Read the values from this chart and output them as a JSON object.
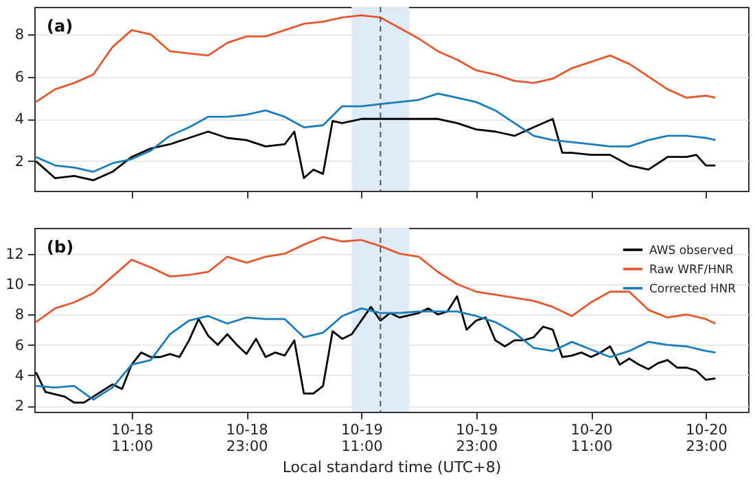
{
  "chart_data": [
    {
      "type": "line",
      "annotations": [
        "(a)"
      ],
      "x": [
        "--10-18T01:00",
        "--10-18T03:00",
        "--10-18T05:00",
        "--10-18T07:00",
        "--10-18T09:00",
        "--10-18T11:00",
        "--10-18T13:00",
        "--10-18T15:00",
        "--10-18T17:00",
        "--10-18T19:00",
        "--10-18T21:00",
        "--10-18T23:00",
        "--10-19T01:00",
        "--10-19T03:00",
        "--10-19T05:00",
        "--10-19T07:00",
        "--10-19T09:00",
        "--10-19T11:00",
        "--10-19T13:00",
        "--10-19T15:00",
        "--10-19T17:00",
        "--10-19T19:00",
        "--10-19T21:00",
        "--10-19T23:00",
        "--10-20T01:00",
        "--10-20T03:00",
        "--10-20T05:00",
        "--10-20T07:00",
        "--10-20T09:00",
        "--10-20T11:00",
        "--10-20T13:00",
        "--10-20T15:00",
        "--10-20T17:00",
        "--10-20T19:00",
        "--10-20T21:00",
        "--10-20T23:00",
        "--10-21T00:00"
      ],
      "series": [
        {
          "color": "#000000",
          "x": [
            "--10-18T01:00",
            "--10-18T03:00",
            "--10-18T05:00",
            "--10-18T07:00",
            "--10-18T09:00",
            "--10-18T11:00",
            "--10-18T13:00",
            "--10-18T15:00",
            "--10-18T17:00",
            "--10-18T19:00",
            "--10-18T21:00",
            "--10-18T23:00",
            "--10-19T01:00",
            "--10-19T03:00",
            "--10-19T04:00",
            "--10-19T05:00",
            "--10-19T06:00",
            "--10-19T07:00",
            "--10-19T08:00",
            "--10-19T09:00",
            "--10-19T11:00",
            "--10-19T13:00",
            "--10-19T15:00",
            "--10-19T17:00",
            "--10-19T19:00",
            "--10-19T21:00",
            "--10-19T23:00",
            "--10-20T01:00",
            "--10-20T03:00",
            "--10-20T05:00",
            "--10-20T07:00",
            "--10-20T08:00",
            "--10-20T09:00",
            "--10-20T11:00",
            "--10-20T13:00",
            "--10-20T15:00",
            "--10-20T17:00",
            "--10-20T19:00",
            "--10-20T21:00",
            "--10-20T22:00",
            "--10-20T23:00",
            "--10-21T00:00"
          ],
          "values": [
            2.0,
            1.2,
            1.3,
            1.1,
            1.5,
            2.2,
            2.6,
            2.8,
            3.1,
            3.4,
            3.1,
            3.0,
            2.7,
            2.8,
            3.4,
            1.2,
            1.6,
            1.4,
            3.9,
            3.8,
            4.0,
            4.0,
            4.0,
            4.0,
            4.0,
            3.8,
            3.5,
            3.4,
            3.2,
            3.6,
            4.0,
            2.4,
            2.4,
            2.3,
            2.3,
            1.8,
            1.6,
            2.2,
            2.2,
            2.3,
            1.8,
            1.8
          ]
        },
        {
          "color": "#e4572e",
          "values": [
            4.8,
            5.4,
            5.7,
            6.1,
            7.4,
            8.2,
            8.0,
            7.2,
            7.1,
            7.0,
            7.6,
            7.9,
            7.9,
            8.2,
            8.5,
            8.6,
            8.8,
            8.9,
            8.8,
            8.3,
            7.8,
            7.2,
            6.8,
            6.3,
            6.1,
            5.8,
            5.7,
            5.9,
            6.4,
            6.7,
            7.0,
            6.6,
            6.0,
            5.4,
            5.0,
            5.1,
            5.0
          ]
        },
        {
          "color": "#1a7dbb",
          "values": [
            2.2,
            1.8,
            1.7,
            1.5,
            1.9,
            2.1,
            2.5,
            3.2,
            3.6,
            4.1,
            4.1,
            4.2,
            4.4,
            4.1,
            3.6,
            3.7,
            4.6,
            4.6,
            4.7,
            4.8,
            4.9,
            5.2,
            5.0,
            4.8,
            4.4,
            3.8,
            3.2,
            3.0,
            2.9,
            2.8,
            2.7,
            2.7,
            3.0,
            3.2,
            3.2,
            3.1,
            3.0
          ]
        }
      ],
      "xlim": [
        "--10-18T00:50",
        "--10-21T03:25"
      ],
      "xticks": [
        {
          "value": "--10-18T11:00",
          "label": null
        },
        {
          "value": "--10-18T23:00",
          "label": null
        },
        {
          "value": "--10-19T11:00",
          "label": null
        },
        {
          "value": "--10-19T23:00",
          "label": null
        },
        {
          "value": "--10-20T11:00",
          "label": null
        },
        {
          "value": "--10-20T23:00",
          "label": null
        }
      ],
      "ylim": [
        0.6,
        9.3
      ],
      "yticks": [
        2,
        4,
        6,
        8
      ],
      "grid": "y",
      "tick_labels": "y",
      "ref_lines": [
        {
          "axis": "x",
          "value": "--10-19T13:00",
          "line_style": "dashed",
          "color": "#555555"
        }
      ],
      "bands": [
        {
          "axis": "x",
          "from": "--10-19T10:00",
          "to": "--10-19T16:00",
          "color": "#deeaf5"
        }
      ]
    },
    {
      "type": "line",
      "annotations": [
        "(b)"
      ],
      "xlabel": "Local standard time (UTC+8)",
      "legend": "top right",
      "x": [
        "--10-18T01:00",
        "--10-18T03:00",
        "--10-18T05:00",
        "--10-18T07:00",
        "--10-18T09:00",
        "--10-18T11:00",
        "--10-18T13:00",
        "--10-18T15:00",
        "--10-18T17:00",
        "--10-18T19:00",
        "--10-18T21:00",
        "--10-18T23:00",
        "--10-19T01:00",
        "--10-19T03:00",
        "--10-19T05:00",
        "--10-19T07:00",
        "--10-19T09:00",
        "--10-19T11:00",
        "--10-19T13:00",
        "--10-19T15:00",
        "--10-19T17:00",
        "--10-19T19:00",
        "--10-19T21:00",
        "--10-19T23:00",
        "--10-20T01:00",
        "--10-20T03:00",
        "--10-20T05:00",
        "--10-20T07:00",
        "--10-20T09:00",
        "--10-20T11:00",
        "--10-20T13:00",
        "--10-20T15:00",
        "--10-20T17:00",
        "--10-20T19:00",
        "--10-20T21:00",
        "--10-20T23:00",
        "--10-21T00:00"
      ],
      "series": [
        {
          "name": "AWS observed",
          "color": "#000000",
          "x": [
            "--10-18T01:00",
            "--10-18T02:00",
            "--10-18T04:00",
            "--10-18T05:00",
            "--10-18T06:00",
            "--10-18T07:00",
            "--10-18T08:00",
            "--10-18T09:00",
            "--10-18T10:00",
            "--10-18T11:00",
            "--10-18T12:00",
            "--10-18T13:00",
            "--10-18T14:00",
            "--10-18T15:00",
            "--10-18T16:00",
            "--10-18T17:00",
            "--10-18T18:00",
            "--10-18T19:00",
            "--10-18T20:00",
            "--10-18T21:00",
            "--10-18T22:00",
            "--10-18T23:00",
            "--10-19T00:00",
            "--10-19T01:00",
            "--10-19T02:00",
            "--10-19T03:00",
            "--10-19T04:00",
            "--10-19T05:00",
            "--10-19T06:00",
            "--10-19T07:00",
            "--10-19T08:00",
            "--10-19T09:00",
            "--10-19T10:00",
            "--10-19T11:00",
            "--10-19T12:00",
            "--10-19T13:00",
            "--10-19T14:00",
            "--10-19T15:00",
            "--10-19T17:00",
            "--10-19T18:00",
            "--10-19T19:00",
            "--10-19T20:00",
            "--10-19T21:00",
            "--10-19T22:00",
            "--10-19T23:00",
            "--10-20T00:00",
            "--10-20T01:00",
            "--10-20T02:00",
            "--10-20T03:00",
            "--10-20T04:00",
            "--10-20T05:00",
            "--10-20T06:00",
            "--10-20T07:00",
            "--10-20T08:00",
            "--10-20T09:00",
            "--10-20T10:00",
            "--10-20T11:00",
            "--10-20T12:00",
            "--10-20T13:00",
            "--10-20T14:00",
            "--10-20T15:00",
            "--10-20T16:00",
            "--10-20T17:00",
            "--10-20T18:00",
            "--10-20T19:00",
            "--10-20T20:00",
            "--10-20T21:00",
            "--10-20T22:00",
            "--10-20T23:00",
            "--10-21T00:00"
          ],
          "values": [
            4.2,
            2.9,
            2.6,
            2.2,
            2.2,
            2.6,
            3.0,
            3.4,
            3.1,
            4.7,
            5.5,
            5.2,
            5.2,
            5.4,
            5.2,
            6.3,
            7.7,
            6.6,
            6.0,
            6.7,
            6.0,
            5.4,
            6.4,
            5.2,
            5.5,
            5.3,
            6.3,
            2.8,
            2.8,
            3.3,
            6.9,
            6.4,
            6.7,
            7.6,
            8.5,
            7.6,
            8.1,
            7.8,
            8.1,
            8.4,
            8.0,
            8.2,
            9.2,
            7.0,
            7.6,
            7.8,
            6.3,
            5.9,
            6.3,
            6.3,
            6.5,
            7.2,
            7.0,
            5.2,
            5.3,
            5.5,
            5.2,
            5.5,
            5.9,
            4.7,
            5.1,
            4.7,
            4.4,
            4.8,
            5.0,
            4.5,
            4.5,
            4.3,
            3.7,
            3.8
          ]
        },
        {
          "name": "Raw WRF/HNR",
          "color": "#e4572e",
          "values": [
            7.5,
            8.4,
            8.8,
            9.4,
            10.5,
            11.6,
            11.1,
            10.5,
            10.6,
            10.8,
            11.8,
            11.4,
            11.8,
            12.0,
            12.6,
            13.1,
            12.8,
            12.9,
            12.5,
            12.0,
            11.8,
            10.8,
            10.0,
            9.5,
            9.3,
            9.1,
            8.9,
            8.5,
            7.9,
            8.8,
            9.5,
            9.5,
            8.3,
            7.8,
            8.0,
            7.7,
            7.4
          ]
        },
        {
          "name": "Corrected HNR",
          "color": "#1a7dbb",
          "values": [
            3.3,
            3.2,
            3.3,
            2.4,
            3.2,
            4.7,
            5.0,
            6.7,
            7.6,
            7.9,
            7.4,
            7.8,
            7.7,
            7.7,
            6.5,
            6.8,
            7.9,
            8.4,
            8.1,
            8.1,
            8.2,
            8.2,
            8.2,
            7.9,
            7.5,
            6.8,
            5.8,
            5.6,
            6.2,
            5.7,
            5.2,
            5.6,
            6.2,
            6.0,
            5.9,
            5.6,
            5.5
          ]
        }
      ],
      "xlim": [
        "--10-18T00:50",
        "--10-21T03:25"
      ],
      "xticks": [
        {
          "value": "--10-18T11:00",
          "label": "10-18\n11:00"
        },
        {
          "value": "--10-18T23:00",
          "label": "10-18\n23:00"
        },
        {
          "value": "--10-19T11:00",
          "label": "10-19\n11:00"
        },
        {
          "value": "--10-19T23:00",
          "label": "10-19\n23:00"
        },
        {
          "value": "--10-20T11:00",
          "label": "10-20\n11:00"
        },
        {
          "value": "--10-20T23:00",
          "label": "10-20\n23:00"
        }
      ],
      "ylim": [
        1.6,
        13.7
      ],
      "yticks": [
        2,
        4,
        6,
        8,
        10,
        12
      ],
      "grid": "y",
      "ref_lines": [
        {
          "axis": "x",
          "value": "--10-19T13:00",
          "line_style": "dashed",
          "color": "#555555"
        }
      ],
      "bands": [
        {
          "axis": "x",
          "from": "--10-19T10:00",
          "to": "--10-19T16:00",
          "color": "#deeaf5"
        }
      ]
    }
  ]
}
